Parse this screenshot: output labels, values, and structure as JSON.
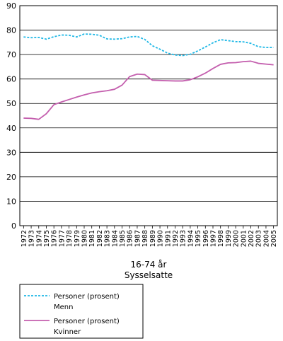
{
  "chart_data": {
    "type": "line",
    "xlabel": "16-74 år",
    "subtitle": "Sysselsatte",
    "ylim": [
      0,
      90
    ],
    "yticks": [
      0,
      10,
      20,
      30,
      40,
      50,
      60,
      70,
      80,
      90
    ],
    "grid": "horizontal",
    "legend_position": "bottom-left",
    "x": [
      "1972",
      "1973",
      "1974",
      "1975",
      "1976",
      "1977",
      "1978",
      "1979",
      "1980",
      "1981",
      "1982",
      "1983",
      "1984",
      "1985",
      "1986",
      "1987",
      "1988",
      "1989",
      "1990",
      "1991",
      "1992",
      "1993",
      "1994",
      "1995",
      "1996",
      "1997",
      "1998",
      "1999",
      "2000",
      "2001",
      "2002",
      "2003",
      "2004",
      "2005"
    ],
    "series": [
      {
        "name": "Personer (prosent)",
        "group": "Menn",
        "color": "#1fb8e6",
        "style": "dashed",
        "values": [
          77.2,
          76.9,
          77.0,
          76.3,
          77.3,
          78.0,
          77.9,
          77.2,
          78.4,
          78.3,
          77.9,
          76.4,
          76.3,
          76.5,
          77.2,
          77.4,
          76.2,
          73.6,
          72.2,
          70.6,
          69.8,
          69.6,
          70.1,
          71.5,
          73.1,
          74.8,
          76.1,
          75.7,
          75.3,
          75.2,
          74.6,
          73.2,
          72.9,
          72.9
        ]
      },
      {
        "name": "Personer (prosent)",
        "group": "Kvinner",
        "color": "#c45fae",
        "style": "solid",
        "values": [
          44.0,
          43.9,
          43.5,
          45.8,
          49.5,
          50.6,
          51.6,
          52.6,
          53.5,
          54.3,
          54.8,
          55.2,
          55.8,
          57.5,
          61.0,
          62.0,
          61.8,
          59.5,
          59.4,
          59.3,
          59.2,
          59.2,
          59.7,
          60.9,
          62.4,
          64.3,
          66.0,
          66.6,
          66.7,
          67.1,
          67.3,
          66.4,
          66.1,
          65.8
        ]
      }
    ]
  }
}
